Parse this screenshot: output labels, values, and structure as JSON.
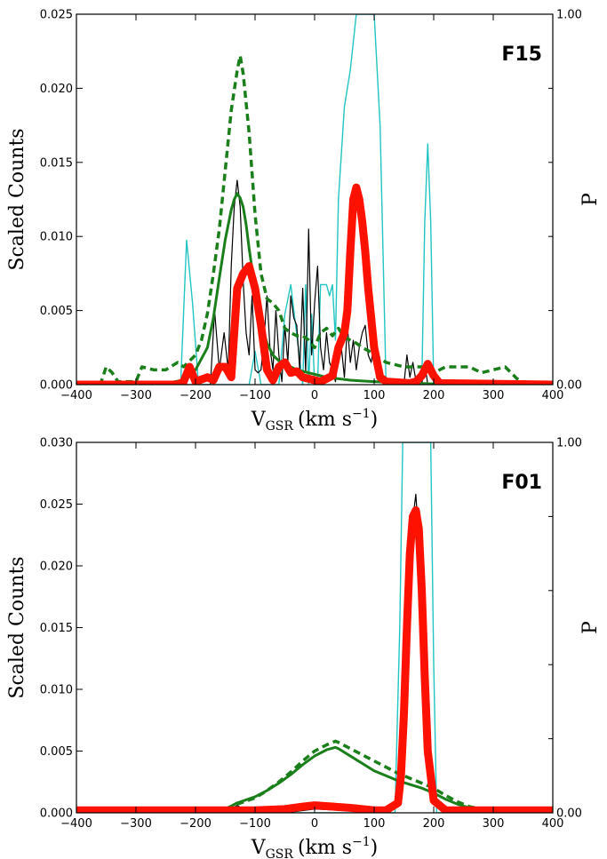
{
  "chart_data": [
    {
      "type": "line",
      "panel_label": "F15",
      "xlabel_main": "V",
      "xlabel_sub": "GSR",
      "xlabel_unit": "(km s",
      "xlabel_exp": "−1",
      "xlabel_close": ")",
      "ylabel": "Scaled Counts",
      "y2label": "P",
      "xlim": [
        -400,
        400
      ],
      "ylim": [
        0,
        0.025
      ],
      "y2lim": [
        0,
        1.0
      ],
      "x_ticks": [
        -400,
        -300,
        -200,
        -100,
        0,
        100,
        200,
        300,
        400
      ],
      "x_tick_labels": [
        "−400",
        "−300",
        "−200",
        "−100",
        "0",
        "100",
        "200",
        "300",
        "400"
      ],
      "y_ticks": [
        0,
        0.005,
        0.01,
        0.015,
        0.02,
        0.025
      ],
      "y_tick_labels": [
        "0.000",
        "0.005",
        "0.010",
        "0.015",
        "0.020",
        "0.025"
      ],
      "y2_ticks": [
        0,
        1.0
      ],
      "y2_tick_labels": [
        "0.00",
        "1.00"
      ],
      "grid": false,
      "colors": {
        "red": "#ff1100",
        "black": "#000000",
        "cyan": "#22c4c4",
        "green": "#1a7f1a"
      },
      "series": [
        {
          "style": "cyan-thin",
          "axis": "y2",
          "x": [
            -400,
            -225,
            -215,
            -205,
            -195,
            -185,
            -110,
            -100,
            -90,
            -60,
            -50,
            -40,
            -20,
            -15,
            -10,
            -5,
            0,
            5,
            10,
            20,
            25,
            30,
            35,
            40,
            50,
            60,
            70,
            100,
            110,
            120,
            170,
            180,
            185,
            190,
            195,
            200,
            210,
            400
          ],
          "values": [
            0,
            0,
            0.39,
            0.22,
            0,
            0,
            0,
            0.09,
            0,
            0,
            0.19,
            0.27,
            0,
            0.27,
            0,
            0.19,
            0,
            0,
            0.27,
            0.27,
            0.24,
            0.27,
            0.12,
            0.5,
            0.75,
            0.85,
            1.0,
            1.0,
            0.7,
            0,
            0,
            0,
            0.44,
            0.65,
            0.44,
            0,
            0,
            0
          ]
        },
        {
          "style": "black-thin",
          "axis": "y",
          "x": [
            -400,
            -175,
            -168,
            -160,
            -152,
            -145,
            -140,
            -135,
            -130,
            -125,
            -120,
            -115,
            -110,
            -105,
            -100,
            -95,
            -90,
            -85,
            -80,
            -75,
            -70,
            -65,
            -60,
            -55,
            -50,
            -45,
            -40,
            -35,
            -30,
            -25,
            -20,
            -15,
            -10,
            -5,
            0,
            5,
            10,
            15,
            20,
            25,
            30,
            35,
            40,
            45,
            50,
            55,
            60,
            65,
            70,
            75,
            80,
            85,
            90,
            95,
            100,
            105,
            110,
            120,
            150,
            155,
            160,
            165,
            170,
            180,
            185,
            190,
            400
          ],
          "values": [
            0,
            0,
            0.005,
            0.001,
            0.0035,
            0.001,
            0.008,
            0.012,
            0.0138,
            0.012,
            0.007,
            0.0035,
            0.002,
            0.006,
            0.001,
            0.0008,
            0.001,
            0.003,
            0.006,
            0.0025,
            0.001,
            0.005,
            0.002,
            0.0002,
            0.004,
            0.0015,
            0.006,
            0.0045,
            0.004,
            0.001,
            0.0065,
            0.0008,
            0.0105,
            0.002,
            0.0055,
            0.008,
            0.0025,
            0.001,
            0.0035,
            0.0015,
            0.001,
            0.0002,
            0.002,
            0.0025,
            0.0005,
            0.004,
            0.0015,
            0.003,
            0.001,
            0.0025,
            0.0035,
            0.004,
            0.002,
            0.0015,
            0.0028,
            0.001,
            0.0003,
            0,
            0,
            0.002,
            0.0005,
            0.0015,
            0.0003,
            0,
            0.0015,
            0,
            0
          ]
        },
        {
          "style": "green-dashed",
          "axis": "y",
          "x": [
            -400,
            -360,
            -350,
            -340,
            -330,
            -310,
            -300,
            -290,
            -270,
            -250,
            -230,
            -220,
            -200,
            -190,
            -180,
            -170,
            -160,
            -150,
            -140,
            -130,
            -125,
            -120,
            -110,
            -100,
            -90,
            -80,
            -70,
            -60,
            -50,
            -40,
            -30,
            -20,
            -10,
            0,
            10,
            20,
            30,
            40,
            50,
            60,
            70,
            80,
            90,
            100,
            120,
            150,
            180,
            200,
            220,
            240,
            260,
            280,
            300,
            320,
            330,
            340,
            350,
            400
          ],
          "values": [
            0,
            0,
            0.0012,
            0.0008,
            0.0002,
            0.0002,
            0.0002,
            0.0012,
            0.001,
            0.001,
            0.0015,
            0.0012,
            0.002,
            0.003,
            0.0048,
            0.0075,
            0.0105,
            0.0145,
            0.0185,
            0.0212,
            0.0222,
            0.021,
            0.017,
            0.0115,
            0.0075,
            0.0058,
            0.0055,
            0.005,
            0.0038,
            0.0035,
            0.0033,
            0.0033,
            0.003,
            0.0025,
            0.0035,
            0.0038,
            0.0033,
            0.0038,
            0.0032,
            0.003,
            0.0028,
            0.0025,
            0.0023,
            0.002,
            0.0015,
            0.0012,
            0.0012,
            0.0008,
            0.0012,
            0.0012,
            0.0012,
            0.0008,
            0.001,
            0.0012,
            0.0008,
            0.0004,
            0.0002,
            0
          ]
        },
        {
          "style": "green-solid",
          "axis": "y",
          "x": [
            -400,
            -280,
            -250,
            -220,
            -200,
            -180,
            -170,
            -160,
            -150,
            -145,
            -140,
            -135,
            -130,
            -125,
            -120,
            -115,
            -110,
            -105,
            -100,
            -95,
            -90,
            -85,
            -80,
            -70,
            -60,
            -50,
            -40,
            -30,
            -20,
            -10,
            0,
            20,
            40,
            60,
            80,
            100,
            130,
            160,
            200,
            250,
            300,
            400
          ],
          "values": [
            0,
            0,
            0.0001,
            0.0003,
            0.001,
            0.0025,
            0.0045,
            0.0072,
            0.0098,
            0.0108,
            0.0118,
            0.0125,
            0.0129,
            0.0126,
            0.012,
            0.0108,
            0.0092,
            0.0078,
            0.0065,
            0.0052,
            0.0042,
            0.0035,
            0.0028,
            0.002,
            0.0016,
            0.0014,
            0.0012,
            0.001,
            0.0009,
            0.0008,
            0.0007,
            0.0005,
            0.0004,
            0.0003,
            0.00025,
            0.0002,
            0.00015,
            0.0001,
            5e-05,
            2e-05,
            1e-05,
            0
          ]
        },
        {
          "style": "red-thick",
          "axis": "y",
          "x": [
            -400,
            -230,
            -220,
            -210,
            -200,
            -180,
            -170,
            -160,
            -150,
            -140,
            -130,
            -120,
            -110,
            -100,
            -90,
            -80,
            -70,
            -60,
            -50,
            -40,
            -30,
            -20,
            -10,
            0,
            10,
            20,
            30,
            40,
            50,
            55,
            60,
            65,
            70,
            75,
            80,
            85,
            90,
            95,
            100,
            110,
            120,
            160,
            170,
            180,
            190,
            200,
            210,
            400
          ],
          "values": [
            0,
            0,
            0.0002,
            0.0012,
            0.0002,
            0.0005,
            0.0003,
            0.0012,
            0.0012,
            0.0005,
            0.0065,
            0.0075,
            0.008,
            0.0065,
            0.004,
            0.001,
            0.0003,
            0.0012,
            0.0015,
            0.0008,
            0.0009,
            0.0005,
            0.0004,
            0.0003,
            0.0002,
            0.0004,
            0.0006,
            0.0025,
            0.0035,
            0.005,
            0.009,
            0.0125,
            0.0133,
            0.0125,
            0.011,
            0.009,
            0.0065,
            0.0045,
            0.0025,
            0.0005,
            0.0002,
            0.0001,
            0.0002,
            0.0006,
            0.0014,
            0.0006,
            0.0001,
            0
          ]
        }
      ]
    },
    {
      "type": "line",
      "panel_label": "F01",
      "xlabel_main": "V",
      "xlabel_sub": "GSR",
      "xlabel_unit": "(km s",
      "xlabel_exp": "−1",
      "xlabel_close": ")",
      "ylabel": "Scaled Counts",
      "y2label": "P",
      "xlim": [
        -400,
        400
      ],
      "ylim": [
        0,
        0.03
      ],
      "y2lim": [
        0,
        1.0
      ],
      "x_ticks": [
        -400,
        -300,
        -200,
        -100,
        0,
        100,
        200,
        300,
        400
      ],
      "x_tick_labels": [
        "−400",
        "−300",
        "−200",
        "−100",
        "0",
        "100",
        "200",
        "300",
        "400"
      ],
      "y_ticks": [
        0,
        0.005,
        0.01,
        0.015,
        0.02,
        0.025,
        0.03
      ],
      "y_tick_labels": [
        "0.000",
        "0.005",
        "0.010",
        "0.015",
        "0.020",
        "0.025",
        "0.030"
      ],
      "y2_ticks": [
        0,
        1.0
      ],
      "y2_tick_labels": [
        "0.00",
        "1.00"
      ],
      "grid": false,
      "colors": {
        "red": "#ff1100",
        "black": "#000000",
        "cyan": "#22c4c4",
        "green": "#1a7f1a"
      },
      "series": [
        {
          "style": "cyan-thin",
          "axis": "y2",
          "x": [
            -400,
            135,
            143,
            148,
            195,
            200,
            205,
            400
          ],
          "values": [
            0,
            0,
            0.5,
            1.0,
            1.0,
            0.4,
            0,
            0
          ]
        },
        {
          "style": "black-thin",
          "axis": "y",
          "x": [
            -400,
            -150,
            -140,
            -130,
            -120,
            -110,
            -100,
            -50,
            0,
            50,
            100,
            130,
            140,
            150,
            155,
            160,
            165,
            170,
            175,
            180,
            185,
            190,
            200,
            220,
            400
          ],
          "values": [
            0,
            0,
            0.0003,
            0.0006,
            0.0003,
            0.0001,
            0,
            0,
            0.0003,
            0.0002,
            0.0001,
            0.0002,
            0.001,
            0.006,
            0.012,
            0.019,
            0.0238,
            0.0258,
            0.022,
            0.016,
            0.009,
            0.004,
            0.001,
            0,
            0
          ]
        },
        {
          "style": "green-dashed",
          "axis": "y",
          "x": [
            -400,
            -200,
            -170,
            -150,
            -130,
            -100,
            -80,
            -60,
            -40,
            -20,
            0,
            20,
            35,
            40,
            60,
            80,
            100,
            120,
            140,
            160,
            180,
            200,
            220,
            240,
            260,
            280,
            300,
            310,
            400
          ],
          "values": [
            0,
            0,
            0.0001,
            0.0003,
            0.0007,
            0.0012,
            0.0018,
            0.0025,
            0.0033,
            0.0042,
            0.005,
            0.0055,
            0.0058,
            0.0057,
            0.0052,
            0.0047,
            0.0042,
            0.0037,
            0.0032,
            0.0028,
            0.0024,
            0.002,
            0.0014,
            0.0009,
            0.0005,
            0.0003,
            0.0001,
            0,
            0
          ]
        },
        {
          "style": "green-solid",
          "axis": "y",
          "x": [
            -400,
            -200,
            -170,
            -150,
            -130,
            -100,
            -80,
            -60,
            -40,
            -20,
            0,
            20,
            35,
            40,
            60,
            80,
            100,
            120,
            140,
            160,
            180,
            200,
            220,
            240,
            260,
            280,
            300,
            310,
            400
          ],
          "values": [
            0,
            0,
            0.0001,
            0.0003,
            0.0008,
            0.0013,
            0.0018,
            0.0024,
            0.0031,
            0.0039,
            0.0046,
            0.0051,
            0.0053,
            0.0052,
            0.0046,
            0.004,
            0.0034,
            0.003,
            0.0026,
            0.0023,
            0.002,
            0.0016,
            0.0011,
            0.0007,
            0.0004,
            0.0002,
            0.0001,
            0,
            0
          ]
        },
        {
          "style": "red-thick",
          "axis": "y",
          "x": [
            -400,
            -100,
            -50,
            -20,
            0,
            30,
            60,
            80,
            100,
            120,
            140,
            145,
            150,
            155,
            160,
            165,
            170,
            175,
            180,
            185,
            190,
            200,
            220,
            400
          ],
          "values": [
            0.0002,
            0.0002,
            0.0003,
            0.0005,
            0.0006,
            0.0005,
            0.0004,
            0.0003,
            0.0002,
            0.0002,
            0.0008,
            0.003,
            0.008,
            0.015,
            0.021,
            0.024,
            0.0245,
            0.023,
            0.018,
            0.011,
            0.005,
            0.001,
            0.0002,
            0.0002
          ]
        }
      ]
    }
  ]
}
